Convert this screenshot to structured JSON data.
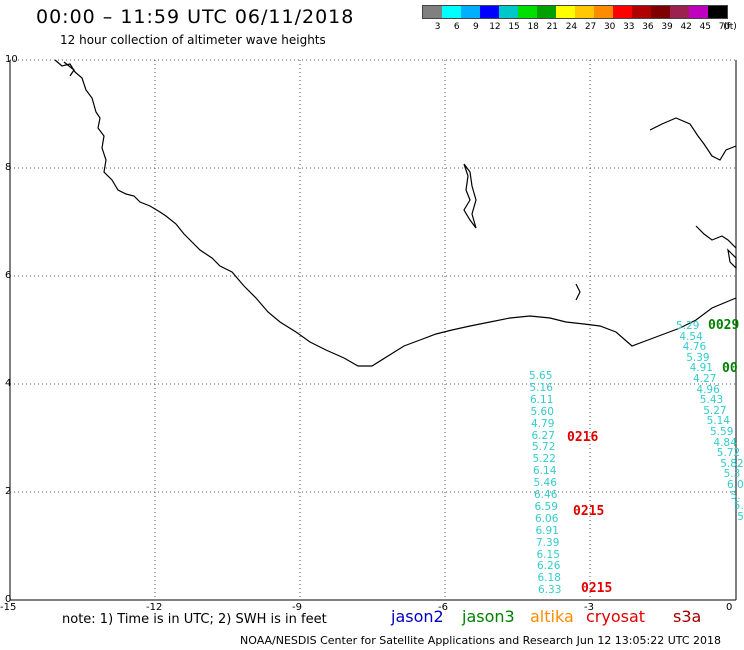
{
  "header": {
    "title": "00:00 – 11:59 UTC 06/11/2018",
    "subtitle": "12 hour collection of altimeter wave heights"
  },
  "scale": {
    "unit": "(ft)",
    "colors": [
      "#808080",
      "#00ffff",
      "#00b0ff",
      "#0000ff",
      "#00c8c8",
      "#00e000",
      "#00a000",
      "#ffff00",
      "#ffc800",
      "#ff8c00",
      "#ff0000",
      "#b00000",
      "#800000",
      "#9c2050",
      "#c000c0",
      "#000000"
    ],
    "labels": [
      "3",
      "6",
      "9",
      "12",
      "15",
      "18",
      "21",
      "24",
      "27",
      "30",
      "33",
      "36",
      "39",
      "42",
      "45",
      "70"
    ]
  },
  "axes": {
    "y_ticks": [
      "10",
      "8",
      "6",
      "4",
      "2",
      "0"
    ],
    "x_ticks": [
      "-15",
      "-12",
      "-9",
      "-6",
      "-3",
      "0"
    ]
  },
  "track_a": {
    "color": "#33cccc",
    "values": [
      "5.65",
      "5.16",
      "6.11",
      "5.60",
      "4.79",
      "6.27",
      "5.72",
      "5.22",
      "6.14",
      "5.46",
      "6.46",
      "6.59",
      "6.06",
      "6.91",
      "7.39",
      "6.15",
      "6.26",
      "6.18",
      "6.33"
    ]
  },
  "track_b": {
    "color": "#33cccc",
    "values": [
      "5.29",
      "4.54",
      "4.76",
      "5.39",
      "4.91",
      "4.27",
      "4.96",
      "5.43",
      "5.27",
      "5.14",
      "5.59",
      "4.84",
      "5.72",
      "5.82",
      "5.3",
      "6.0",
      "5.",
      "5.",
      "5"
    ]
  },
  "pass_times": [
    {
      "text": "0216",
      "color": "#e00000"
    },
    {
      "text": "0215",
      "color": "#e00000"
    },
    {
      "text": "0215",
      "color": "#e00000"
    },
    {
      "text": "0029",
      "color": "#008000"
    },
    {
      "text": "00",
      "color": "#008000"
    }
  ],
  "legend": {
    "note": "note: 1) Time is in UTC; 2) SWH is in feet",
    "items": [
      {
        "name": "jason2",
        "color": "#0000c0"
      },
      {
        "name": "jason3",
        "color": "#008000"
      },
      {
        "name": "altika",
        "color": "#ff8c00"
      },
      {
        "name": "cryosat",
        "color": "#e00000"
      },
      {
        "name": "s3a",
        "color": "#a00000"
      }
    ]
  },
  "credit": "NOAA/NESDIS Center for Satellite Applications and Research    Jun 12 13:05:22 UTC 2018"
}
